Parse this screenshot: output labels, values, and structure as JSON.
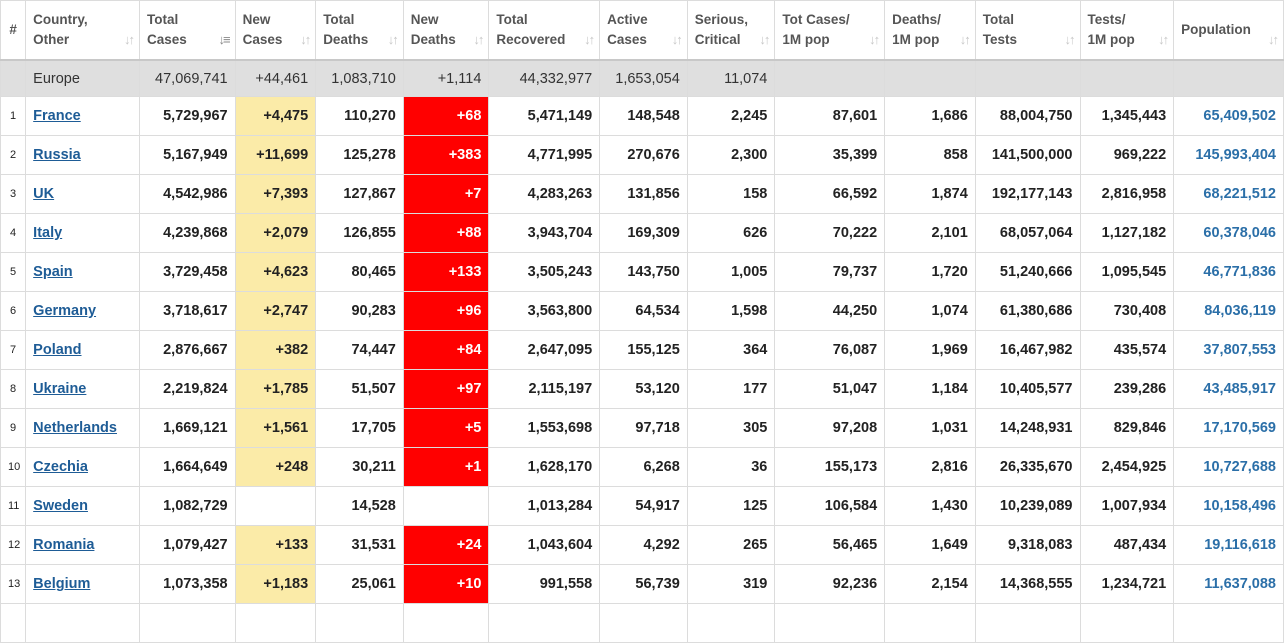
{
  "headers": [
    {
      "l1": "#",
      "l2": ""
    },
    {
      "l1": "Country,",
      "l2": "Other"
    },
    {
      "l1": "Total",
      "l2": "Cases"
    },
    {
      "l1": "New",
      "l2": "Cases"
    },
    {
      "l1": "Total",
      "l2": "Deaths"
    },
    {
      "l1": "New",
      "l2": "Deaths"
    },
    {
      "l1": "Total",
      "l2": "Recovered"
    },
    {
      "l1": "Active",
      "l2": "Cases"
    },
    {
      "l1": "Serious,",
      "l2": "Critical"
    },
    {
      "l1": "Tot Cases/",
      "l2": "1M pop"
    },
    {
      "l1": "Deaths/",
      "l2": "1M pop"
    },
    {
      "l1": "Total",
      "l2": "Tests"
    },
    {
      "l1": "Tests/",
      "l2": "1M pop"
    },
    {
      "l1": "Population",
      "l2": ""
    }
  ],
  "total": {
    "name": "Europe",
    "total_cases": "47,069,741",
    "new_cases": "+44,461",
    "total_deaths": "1,083,710",
    "new_deaths": "+1,114",
    "total_recovered": "44,332,977",
    "active_cases": "1,653,054",
    "serious": "11,074",
    "cases_per_1m": "",
    "deaths_per_1m": "",
    "total_tests": "",
    "tests_per_1m": "",
    "population": ""
  },
  "rows": [
    {
      "num": "1",
      "country": "France",
      "total_cases": "5,729,967",
      "new_cases": "+4,475",
      "total_deaths": "110,270",
      "new_deaths": "+68",
      "total_recovered": "5,471,149",
      "active_cases": "148,548",
      "serious": "2,245",
      "cases_per_1m": "87,601",
      "deaths_per_1m": "1,686",
      "total_tests": "88,004,750",
      "tests_per_1m": "1,345,443",
      "population": "65,409,502"
    },
    {
      "num": "2",
      "country": "Russia",
      "total_cases": "5,167,949",
      "new_cases": "+11,699",
      "total_deaths": "125,278",
      "new_deaths": "+383",
      "total_recovered": "4,771,995",
      "active_cases": "270,676",
      "serious": "2,300",
      "cases_per_1m": "35,399",
      "deaths_per_1m": "858",
      "total_tests": "141,500,000",
      "tests_per_1m": "969,222",
      "population": "145,993,404"
    },
    {
      "num": "3",
      "country": "UK",
      "total_cases": "4,542,986",
      "new_cases": "+7,393",
      "total_deaths": "127,867",
      "new_deaths": "+7",
      "total_recovered": "4,283,263",
      "active_cases": "131,856",
      "serious": "158",
      "cases_per_1m": "66,592",
      "deaths_per_1m": "1,874",
      "total_tests": "192,177,143",
      "tests_per_1m": "2,816,958",
      "population": "68,221,512"
    },
    {
      "num": "4",
      "country": "Italy",
      "total_cases": "4,239,868",
      "new_cases": "+2,079",
      "total_deaths": "126,855",
      "new_deaths": "+88",
      "total_recovered": "3,943,704",
      "active_cases": "169,309",
      "serious": "626",
      "cases_per_1m": "70,222",
      "deaths_per_1m": "2,101",
      "total_tests": "68,057,064",
      "tests_per_1m": "1,127,182",
      "population": "60,378,046"
    },
    {
      "num": "5",
      "country": "Spain",
      "total_cases": "3,729,458",
      "new_cases": "+4,623",
      "total_deaths": "80,465",
      "new_deaths": "+133",
      "total_recovered": "3,505,243",
      "active_cases": "143,750",
      "serious": "1,005",
      "cases_per_1m": "79,737",
      "deaths_per_1m": "1,720",
      "total_tests": "51,240,666",
      "tests_per_1m": "1,095,545",
      "population": "46,771,836"
    },
    {
      "num": "6",
      "country": "Germany",
      "total_cases": "3,718,617",
      "new_cases": "+2,747",
      "total_deaths": "90,283",
      "new_deaths": "+96",
      "total_recovered": "3,563,800",
      "active_cases": "64,534",
      "serious": "1,598",
      "cases_per_1m": "44,250",
      "deaths_per_1m": "1,074",
      "total_tests": "61,380,686",
      "tests_per_1m": "730,408",
      "population": "84,036,119"
    },
    {
      "num": "7",
      "country": "Poland",
      "total_cases": "2,876,667",
      "new_cases": "+382",
      "total_deaths": "74,447",
      "new_deaths": "+84",
      "total_recovered": "2,647,095",
      "active_cases": "155,125",
      "serious": "364",
      "cases_per_1m": "76,087",
      "deaths_per_1m": "1,969",
      "total_tests": "16,467,982",
      "tests_per_1m": "435,574",
      "population": "37,807,553"
    },
    {
      "num": "8",
      "country": "Ukraine",
      "total_cases": "2,219,824",
      "new_cases": "+1,785",
      "total_deaths": "51,507",
      "new_deaths": "+97",
      "total_recovered": "2,115,197",
      "active_cases": "53,120",
      "serious": "177",
      "cases_per_1m": "51,047",
      "deaths_per_1m": "1,184",
      "total_tests": "10,405,577",
      "tests_per_1m": "239,286",
      "population": "43,485,917"
    },
    {
      "num": "9",
      "country": "Netherlands",
      "total_cases": "1,669,121",
      "new_cases": "+1,561",
      "total_deaths": "17,705",
      "new_deaths": "+5",
      "total_recovered": "1,553,698",
      "active_cases": "97,718",
      "serious": "305",
      "cases_per_1m": "97,208",
      "deaths_per_1m": "1,031",
      "total_tests": "14,248,931",
      "tests_per_1m": "829,846",
      "population": "17,170,569"
    },
    {
      "num": "10",
      "country": "Czechia",
      "total_cases": "1,664,649",
      "new_cases": "+248",
      "total_deaths": "30,211",
      "new_deaths": "+1",
      "total_recovered": "1,628,170",
      "active_cases": "6,268",
      "serious": "36",
      "cases_per_1m": "155,173",
      "deaths_per_1m": "2,816",
      "total_tests": "26,335,670",
      "tests_per_1m": "2,454,925",
      "population": "10,727,688"
    },
    {
      "num": "11",
      "country": "Sweden",
      "total_cases": "1,082,729",
      "new_cases": "",
      "total_deaths": "14,528",
      "new_deaths": "",
      "total_recovered": "1,013,284",
      "active_cases": "54,917",
      "serious": "125",
      "cases_per_1m": "106,584",
      "deaths_per_1m": "1,430",
      "total_tests": "10,239,089",
      "tests_per_1m": "1,007,934",
      "population": "10,158,496"
    },
    {
      "num": "12",
      "country": "Romania",
      "total_cases": "1,079,427",
      "new_cases": "+133",
      "total_deaths": "31,531",
      "new_deaths": "+24",
      "total_recovered": "1,043,604",
      "active_cases": "4,292",
      "serious": "265",
      "cases_per_1m": "56,465",
      "deaths_per_1m": "1,649",
      "total_tests": "9,318,083",
      "tests_per_1m": "487,434",
      "population": "19,116,618"
    },
    {
      "num": "13",
      "country": "Belgium",
      "total_cases": "1,073,358",
      "new_cases": "+1,183",
      "total_deaths": "25,061",
      "new_deaths": "+10",
      "total_recovered": "991,558",
      "active_cases": "56,739",
      "serious": "319",
      "cases_per_1m": "92,236",
      "deaths_per_1m": "2,154",
      "total_tests": "14,368,555",
      "tests_per_1m": "1,234,721",
      "population": "11,637,088"
    },
    {
      "num": "",
      "country": "",
      "total_cases": "",
      "new_cases": "",
      "total_deaths": "",
      "new_deaths": "",
      "total_recovered": "",
      "active_cases": "",
      "serious": "",
      "cases_per_1m": "",
      "deaths_per_1m": "",
      "total_tests": "",
      "tests_per_1m": "",
      "population": ""
    }
  ],
  "colors": {
    "new_cases_bg": "#fbeba8",
    "new_deaths_bg": "#ff0000",
    "total_row_bg": "#dfdfdf",
    "link": "#1e5c96"
  }
}
